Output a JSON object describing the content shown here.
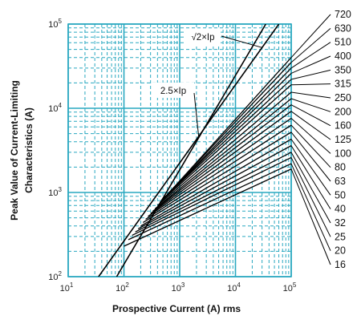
{
  "chart_data": {
    "type": "line",
    "xlabel": "Prospective Current (A) rms",
    "ylabel": "Peak Value of Current-Limiting Characteristics (A)",
    "x_scale": "log",
    "y_scale": "log",
    "xlim": [
      10,
      100000
    ],
    "ylim": [
      100,
      100000
    ],
    "x_ticks": [
      10,
      100,
      1000,
      10000,
      100000
    ],
    "y_ticks": [
      100,
      1000,
      10000,
      100000
    ],
    "grid": true,
    "colors": {
      "grid": "#29a8c0",
      "axis": "#29a8c0",
      "lines": "#000000",
      "background": "#ffffff"
    },
    "reference_lines": [
      {
        "label": "√2×Ip",
        "points": [
          [
            35,
            100
          ],
          [
            60000,
            100000
          ]
        ]
      },
      {
        "label": "2.5×Ip",
        "points": [
          [
            74,
            100
          ],
          [
            35000,
            100000
          ]
        ]
      }
    ],
    "series": [
      {
        "name": "720",
        "points": [
          [
            650,
            1000
          ],
          [
            100000,
            40000
          ]
        ]
      },
      {
        "name": "630",
        "points": [
          [
            600,
            950
          ],
          [
            100000,
            35000
          ]
        ]
      },
      {
        "name": "510",
        "points": [
          [
            560,
            900
          ],
          [
            100000,
            30000
          ]
        ]
      },
      {
        "name": "400",
        "points": [
          [
            520,
            860
          ],
          [
            100000,
            26000
          ]
        ]
      },
      {
        "name": "350",
        "points": [
          [
            480,
            820
          ],
          [
            100000,
            22000
          ]
        ]
      },
      {
        "name": "315",
        "points": [
          [
            440,
            760
          ],
          [
            100000,
            19000
          ]
        ]
      },
      {
        "name": "250",
        "points": [
          [
            400,
            700
          ],
          [
            100000,
            15500
          ]
        ]
      },
      {
        "name": "200",
        "points": [
          [
            360,
            640
          ],
          [
            100000,
            13000
          ]
        ]
      },
      {
        "name": "160",
        "points": [
          [
            330,
            600
          ],
          [
            100000,
            11000
          ]
        ]
      },
      {
        "name": "125",
        "points": [
          [
            300,
            560
          ],
          [
            100000,
            9200
          ]
        ]
      },
      {
        "name": "100",
        "points": [
          [
            270,
            520
          ],
          [
            100000,
            7600
          ]
        ]
      },
      {
        "name": "80",
        "points": [
          [
            245,
            480
          ],
          [
            100000,
            6300
          ]
        ]
      },
      {
        "name": "63",
        "points": [
          [
            220,
            440
          ],
          [
            100000,
            5200
          ]
        ]
      },
      {
        "name": "50",
        "points": [
          [
            200,
            400
          ],
          [
            100000,
            4300
          ]
        ]
      },
      {
        "name": "40",
        "points": [
          [
            180,
            370
          ],
          [
            100000,
            3600
          ]
        ]
      },
      {
        "name": "32",
        "points": [
          [
            160,
            340
          ],
          [
            100000,
            3000
          ]
        ]
      },
      {
        "name": "25",
        "points": [
          [
            140,
            310
          ],
          [
            100000,
            2600
          ]
        ]
      },
      {
        "name": "20",
        "points": [
          [
            120,
            275
          ],
          [
            100000,
            2200
          ]
        ]
      },
      {
        "name": "16",
        "points": [
          [
            100,
            230
          ],
          [
            100000,
            1900
          ]
        ]
      }
    ]
  }
}
